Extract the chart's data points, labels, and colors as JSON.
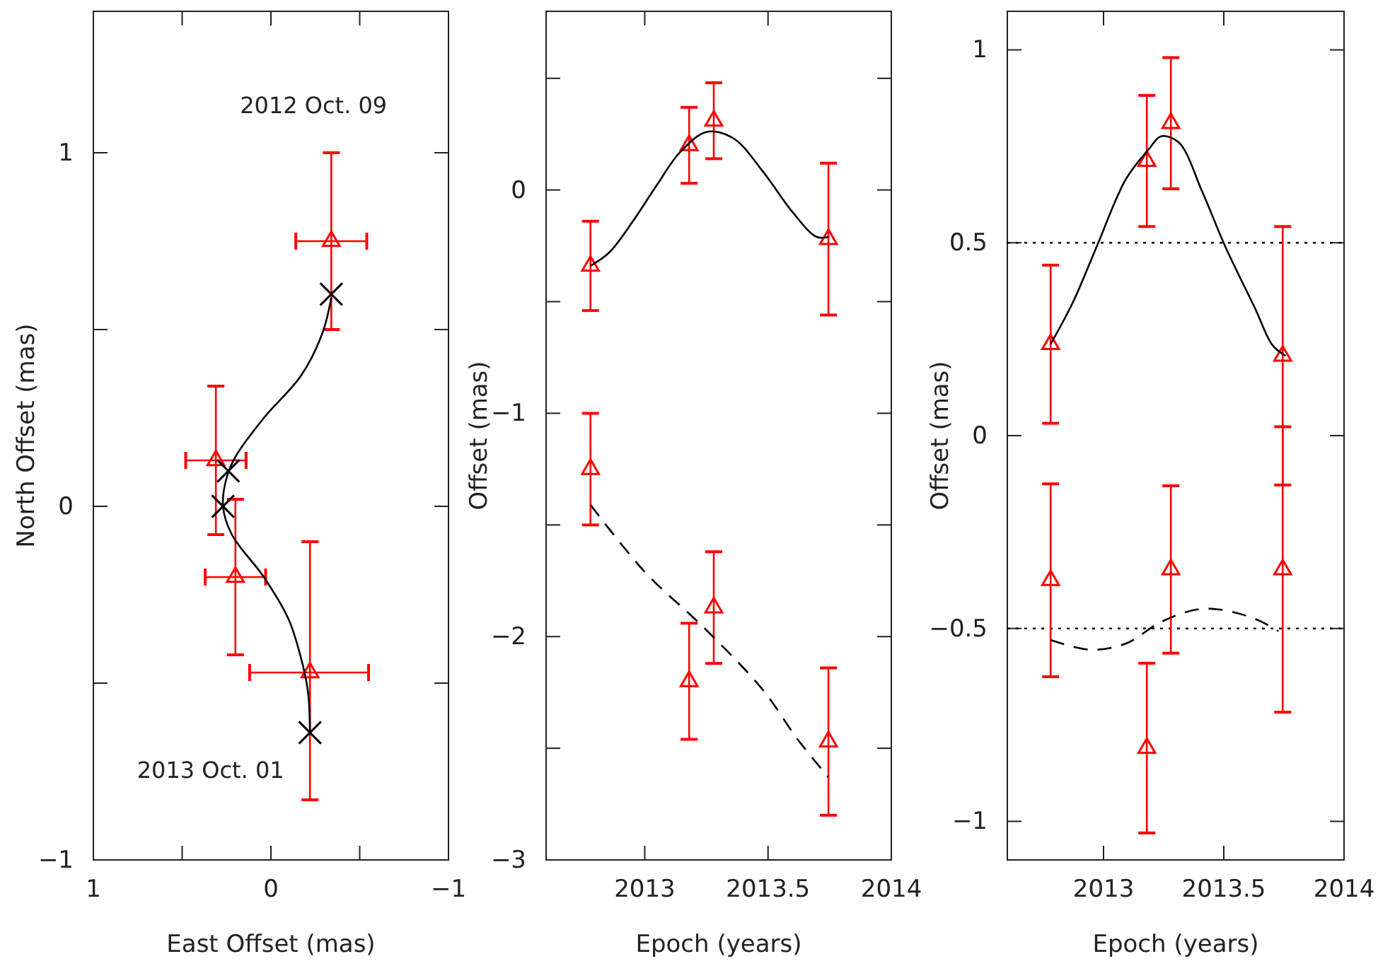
{
  "chart_data": [
    {
      "type": "scatter",
      "xlabel": "East Offset (mas)",
      "ylabel": "North Offset (mas)",
      "xlim": [
        1,
        -1
      ],
      "ylim": [
        -1,
        1.4
      ],
      "xticks": [
        1,
        {
          "value": 0.5,
          "label": null
        },
        0,
        {
          "value": -0.5,
          "label": null
        },
        {
          "value": -1,
          "label": "−1"
        }
      ],
      "yticks": [
        {
          "value": -1,
          "label": "−1"
        },
        {
          "value": -0.5,
          "label": null
        },
        0,
        {
          "value": 0.5,
          "label": null
        },
        1
      ],
      "annotations": [
        "2012 Oct. 09",
        "2013 Oct. 01"
      ],
      "series": [
        {
          "type": "scatter",
          "marker": "triangle",
          "color": "#ff0000",
          "x": [
            -0.34,
            0.31,
            0.2,
            -0.22
          ],
          "values": [
            0.75,
            0.13,
            -0.2,
            -0.47
          ],
          "errors": [
            0.25,
            0.21,
            0.22,
            [
              -0.83,
              -0.1
            ]
          ],
          "xerrors": [
            0.2,
            0.17,
            0.17,
            [
              -0.55,
              0.12
            ]
          ]
        },
        {
          "type": "line",
          "line_style": "solid",
          "color": "#000000",
          "x": [
            -0.34,
            -0.29,
            -0.17,
            0.04,
            0.2,
            0.25,
            0.27,
            0.22,
            0.04,
            -0.1,
            -0.18,
            -0.21,
            -0.22
          ],
          "values": [
            0.59,
            0.49,
            0.37,
            0.25,
            0.14,
            0.08,
            0.0,
            -0.08,
            -0.2,
            -0.32,
            -0.45,
            -0.53,
            -0.64
          ]
        },
        {
          "type": "scatter",
          "marker": "cross",
          "color": "#000000",
          "x": [
            -0.34,
            0.24,
            0.27,
            -0.22
          ],
          "values": [
            0.6,
            0.1,
            0.0,
            -0.64
          ]
        }
      ]
    },
    {
      "type": "scatter",
      "xlabel": "Epoch (years)",
      "ylabel": "Offset (mas)",
      "xlim": [
        2012.6,
        2014
      ],
      "ylim": [
        -3,
        0.8
      ],
      "xticks": [
        2013,
        2013.5,
        2014
      ],
      "yticks": [
        {
          "value": -3,
          "label": "−3"
        },
        {
          "value": -2.5,
          "label": null
        },
        {
          "value": -2,
          "label": "−2"
        },
        {
          "value": -1.5,
          "label": null
        },
        {
          "value": -1,
          "label": "−1"
        },
        {
          "value": -0.5,
          "label": null
        },
        0,
        {
          "value": 0.5,
          "label": null
        }
      ],
      "series": [
        {
          "type": "scatter",
          "marker": "triangle",
          "color": "#ff0000",
          "x": [
            2012.78,
            2013.18,
            2013.28,
            2013.745
          ],
          "values": [
            -0.34,
            0.2,
            0.31,
            -0.22
          ],
          "errors": [
            0.2,
            0.17,
            0.17,
            0.34
          ]
        },
        {
          "type": "scatter",
          "marker": "triangle",
          "color": "#ff0000",
          "x": [
            2012.78,
            2013.18,
            2013.28,
            2013.745
          ],
          "values": [
            -1.25,
            -2.2,
            -1.87,
            -2.47
          ],
          "errors": [
            0.25,
            0.26,
            0.25,
            0.33
          ]
        },
        {
          "type": "line",
          "line_style": "solid",
          "color": "#000000",
          "x": [
            2012.78,
            2012.856,
            2012.952,
            2013.048,
            2013.144,
            2013.252,
            2013.361,
            2013.481,
            2013.6,
            2013.697,
            2013.745
          ],
          "values": [
            -0.34,
            -0.28,
            -0.14,
            0.02,
            0.17,
            0.26,
            0.23,
            0.08,
            -0.1,
            -0.21,
            -0.21
          ]
        },
        {
          "type": "line",
          "line_style": "dashed",
          "color": "#000000",
          "x": [
            2012.78,
            2013.0,
            2013.24,
            2013.48,
            2013.62,
            2013.745
          ],
          "values": [
            -1.41,
            -1.71,
            -1.96,
            -2.24,
            -2.46,
            -2.63
          ]
        }
      ]
    },
    {
      "type": "scatter",
      "xlabel": "Epoch (years)",
      "ylabel": "Offset (mas)",
      "xlim": [
        2012.6,
        2014
      ],
      "ylim": [
        -1.1,
        1.1
      ],
      "xticks": [
        2013,
        2013.5,
        2014
      ],
      "yticks": [
        {
          "value": -1,
          "label": "−1"
        },
        {
          "value": -0.5,
          "label": "−0.5"
        },
        0,
        0.5,
        1
      ],
      "ref_lines": [
        {
          "axis": "y",
          "value": 0.5,
          "line_style": "dotted",
          "color": "#000000"
        },
        {
          "axis": "y",
          "value": -0.5,
          "line_style": "dotted",
          "color": "#000000"
        }
      ],
      "series": [
        {
          "type": "scatter",
          "marker": "triangle",
          "color": "#ff0000",
          "x": [
            2012.78,
            2013.18,
            2013.28,
            2013.745
          ],
          "values": [
            0.237,
            0.712,
            0.81,
            0.207
          ],
          "errors": [
            0.205,
            0.17,
            0.17,
            0.335
          ]
        },
        {
          "type": "scatter",
          "marker": "triangle",
          "color": "#ff0000",
          "x": [
            2012.78,
            2013.18,
            2013.28,
            2013.745
          ],
          "values": [
            -0.375,
            -0.81,
            -0.347,
            -0.347
          ],
          "errors": [
            0.25,
            0.22,
            0.217,
            0.37
          ]
        },
        {
          "type": "line",
          "line_style": "solid",
          "color": "#000000",
          "x": [
            2012.78,
            2012.873,
            2012.971,
            2013.093,
            2013.19,
            2013.239,
            2013.313,
            2013.41,
            2013.507,
            2013.63,
            2013.703,
            2013.757
          ],
          "values": [
            0.237,
            0.346,
            0.489,
            0.665,
            0.744,
            0.776,
            0.76,
            0.633,
            0.489,
            0.33,
            0.234,
            0.207
          ]
        },
        {
          "type": "line",
          "line_style": "dashed",
          "color": "#000000",
          "x": [
            2012.78,
            2012.946,
            2013.093,
            2013.239,
            2013.386,
            2013.483,
            2013.63,
            2013.727
          ],
          "values": [
            -0.53,
            -0.555,
            -0.539,
            -0.483,
            -0.451,
            -0.451,
            -0.475,
            -0.507
          ]
        }
      ]
    }
  ]
}
